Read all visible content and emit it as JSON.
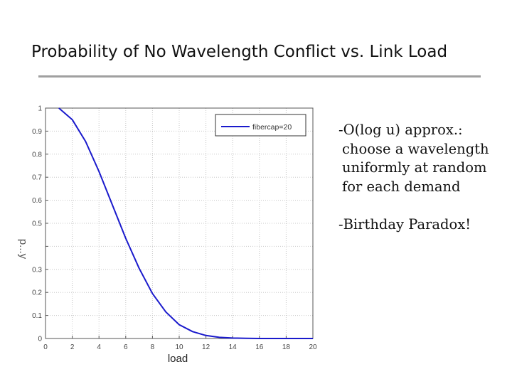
{
  "slide": {
    "title": "Probability of No Wavelength Conflict vs. Link Load"
  },
  "bullets": [
    {
      "head": "-O(log u) approx.:",
      "lines": [
        "choose a wavelength",
        "uniformly at random",
        "for each demand"
      ]
    },
    {
      "head": "-Birthday Paradox!",
      "lines": []
    }
  ],
  "chart_data": {
    "type": "line",
    "xlabel": "load",
    "ylabel": "p...y",
    "xlim": [
      0,
      20
    ],
    "ylim": [
      0,
      1
    ],
    "xticks": [
      0,
      2,
      4,
      6,
      8,
      10,
      12,
      14,
      16,
      18,
      20
    ],
    "yticks": [
      0,
      0.1,
      0.2,
      0.3,
      0.4,
      0.5,
      0.6,
      0.7,
      0.8,
      0.9,
      1
    ],
    "ytick_labels": [
      "0",
      "0.1",
      "0.2",
      "0.3",
      "",
      "0.5",
      "0.6",
      "0.7",
      "0.8",
      "0.9",
      "1"
    ],
    "grid": "dotted",
    "legend_position": "top-right",
    "series": [
      {
        "name": "fibercap=20",
        "color": "#1a1acc",
        "x": [
          1,
          2,
          3,
          4,
          5,
          6,
          7,
          8,
          9,
          10,
          11,
          12,
          13,
          14,
          15,
          16,
          17,
          18,
          19,
          20
        ],
        "y": [
          1.0,
          0.95,
          0.855,
          0.725,
          0.58,
          0.435,
          0.305,
          0.195,
          0.115,
          0.06,
          0.03,
          0.013,
          0.005,
          0.002,
          0.001,
          0,
          0,
          0,
          0,
          0
        ]
      }
    ]
  }
}
